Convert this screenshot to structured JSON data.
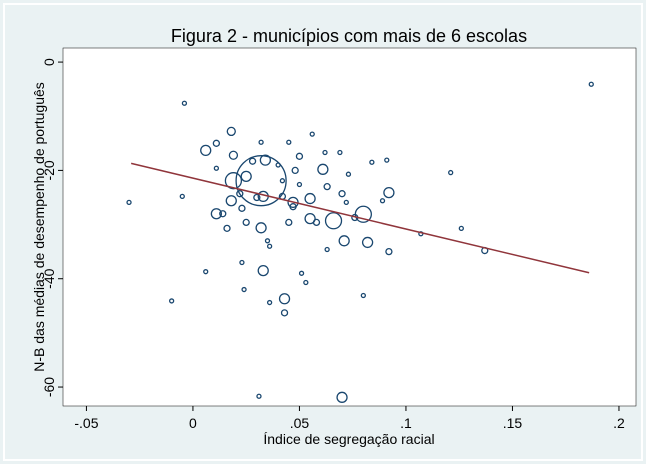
{
  "chart_data": {
    "type": "scatter",
    "title": "Figura 2 - municípios com mais de 6 escolas",
    "x_label": "Índice de segregação racial",
    "y_label": "N-B das médias de desempenho de português",
    "xlim": [
      -0.061,
      0.208
    ],
    "ylim": [
      -63.5,
      2.6
    ],
    "xticks": [
      {
        "value": -0.05,
        "label": "-.05"
      },
      0,
      {
        "value": 0.05,
        "label": ".05"
      },
      {
        "value": 0.1,
        "label": ".1"
      },
      {
        "value": 0.15,
        "label": ".15"
      },
      {
        "value": 0.2,
        "label": ".2"
      }
    ],
    "yticks": [
      0,
      -20,
      -40,
      -60
    ],
    "series": [
      {
        "color": "#1a476f",
        "x": [
          -0.03,
          -0.004,
          -0.01,
          -0.005,
          0.006,
          0.006,
          0.011,
          0.011,
          0.011,
          0.014,
          0.016,
          0.018,
          0.019,
          0.018,
          0.019,
          0.022,
          0.023,
          0.023,
          0.024,
          0.025,
          0.025,
          0.028,
          0.032,
          0.03,
          0.033,
          0.034,
          0.032,
          0.033,
          0.032,
          0.035,
          0.036,
          0.036,
          0.031,
          0.04,
          0.042,
          0.042,
          0.043,
          0.043,
          0.045,
          0.047,
          0.047,
          0.045,
          0.048,
          0.05,
          0.05,
          0.051,
          0.053,
          0.055,
          0.055,
          0.056,
          0.058,
          0.061,
          0.062,
          0.063,
          0.063,
          0.066,
          0.069,
          0.07,
          0.071,
          0.07,
          0.072,
          0.073,
          0.076,
          0.08,
          0.082,
          0.08,
          0.084,
          0.089,
          0.091,
          0.092,
          0.092,
          0.107,
          0.121,
          0.126,
          0.137,
          0.187
        ],
        "values": [
          -25.9,
          -7.6,
          -44.1,
          -24.8,
          -38.7,
          -16.3,
          -15.0,
          -19.6,
          -28.0,
          -28.0,
          -30.7,
          -25.6,
          -21.9,
          -12.8,
          -17.2,
          -24.3,
          -37.0,
          -27.0,
          -42.0,
          -21.1,
          -29.6,
          -18.3,
          -21.9,
          -25.0,
          -24.8,
          -18.1,
          -30.6,
          -38.5,
          -14.8,
          -33.0,
          -34.0,
          -44.4,
          -61.7,
          -19.0,
          -21.9,
          -24.8,
          -43.7,
          -46.3,
          -29.6,
          -25.9,
          -26.7,
          -14.8,
          -20.0,
          -17.4,
          -22.6,
          -39.0,
          -40.7,
          -25.2,
          -28.9,
          -13.3,
          -29.6,
          -19.8,
          -16.7,
          -23.0,
          -34.6,
          -29.3,
          -16.7,
          -24.3,
          -33.0,
          -61.9,
          -25.9,
          -20.7,
          -28.7,
          -28.1,
          -33.3,
          -43.1,
          -18.5,
          -25.6,
          -18.1,
          -24.1,
          -35.0,
          -31.7,
          -20.4,
          -30.7,
          -34.8,
          -4.1
        ],
        "sizes": [
          4,
          4,
          4,
          4,
          4,
          25,
          9,
          4,
          25,
          9,
          9,
          25,
          64,
          16,
          16,
          9,
          4,
          9,
          4,
          25,
          9,
          9,
          625,
          9,
          25,
          25,
          25,
          25,
          4,
          4,
          4,
          4,
          4,
          4,
          4,
          9,
          25,
          9,
          9,
          25,
          9,
          4,
          9,
          9,
          4,
          4,
          4,
          25,
          25,
          4,
          9,
          25,
          4,
          9,
          4,
          64,
          4,
          9,
          25,
          25,
          4,
          4,
          9,
          64,
          25,
          4,
          4,
          4,
          4,
          25,
          9,
          4,
          4,
          4,
          9,
          4
        ]
      },
      {
        "type": "line",
        "color": "#90353b",
        "x": [
          -0.029,
          0.186
        ],
        "values": [
          -18.7,
          -38.9
        ]
      }
    ]
  }
}
